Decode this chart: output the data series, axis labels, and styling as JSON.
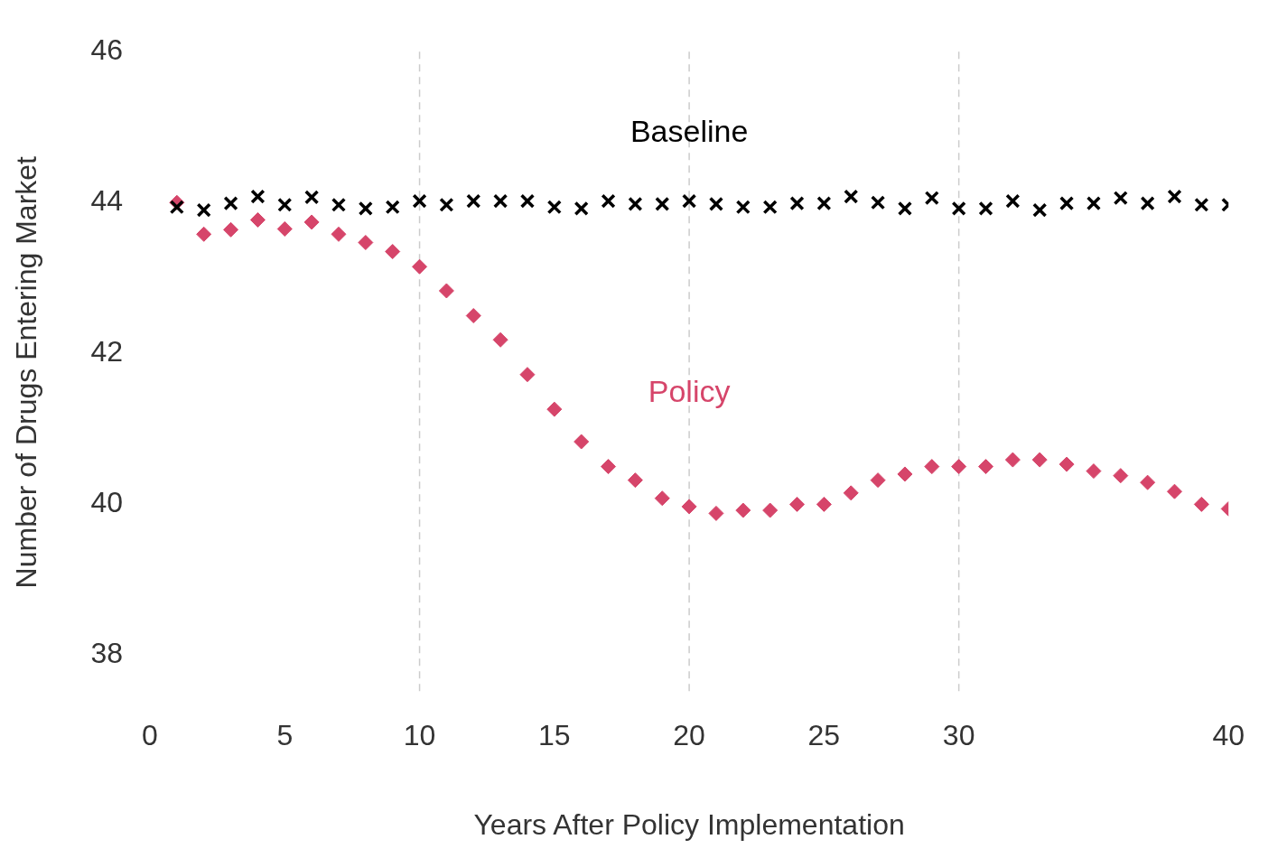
{
  "chart_data": {
    "type": "scatter",
    "xlabel": "Years After Policy Implementation",
    "ylabel": "Number of Drugs Entering Market",
    "x": [
      1,
      2,
      3,
      4,
      5,
      6,
      7,
      8,
      9,
      10,
      11,
      12,
      13,
      14,
      15,
      16,
      17,
      18,
      19,
      20,
      21,
      22,
      23,
      24,
      25,
      26,
      27,
      28,
      29,
      30,
      31,
      32,
      33,
      34,
      35,
      36,
      37,
      38,
      39,
      40
    ],
    "series": [
      {
        "name": "Baseline",
        "color": "#000000",
        "marker": "cross",
        "values": [
          43.94,
          43.9,
          43.99,
          44.08,
          43.97,
          44.07,
          43.97,
          43.92,
          43.94,
          44.02,
          43.97,
          44.02,
          44.02,
          44.02,
          43.94,
          43.92,
          44.02,
          43.98,
          43.98,
          44.02,
          43.98,
          43.94,
          43.94,
          43.99,
          43.99,
          44.08,
          44.0,
          43.92,
          44.06,
          43.92,
          43.92,
          44.02,
          43.9,
          43.99,
          43.99,
          44.06,
          43.99,
          44.08,
          43.97,
          43.97
        ]
      },
      {
        "name": "Policy",
        "color": "#d6456a",
        "marker": "diamond",
        "values": [
          44.0,
          43.58,
          43.64,
          43.77,
          43.65,
          43.74,
          43.58,
          43.47,
          43.35,
          43.15,
          42.83,
          42.5,
          42.18,
          41.72,
          41.26,
          40.83,
          40.5,
          40.32,
          40.08,
          39.97,
          39.88,
          39.92,
          39.92,
          40.0,
          40.0,
          40.15,
          40.32,
          40.4,
          40.5,
          40.5,
          40.5,
          40.59,
          40.59,
          40.53,
          40.44,
          40.38,
          40.29,
          40.17,
          40.0,
          39.94
        ]
      }
    ],
    "xlim": [
      0,
      40
    ],
    "xticks": [
      0,
      5,
      10,
      15,
      20,
      25,
      30,
      40
    ],
    "ylim": [
      37.5,
      46
    ],
    "yticks": [
      38,
      40,
      42,
      44,
      46
    ],
    "grid": false,
    "legend": false,
    "ref_lines": [
      {
        "axis": "x",
        "value": 10,
        "color": "#cccccc",
        "line_style": "dashed"
      },
      {
        "axis": "x",
        "value": 20,
        "color": "#cccccc",
        "line_style": "dashed"
      },
      {
        "axis": "x",
        "value": 30,
        "color": "#cccccc",
        "line_style": "dashed"
      }
    ]
  }
}
